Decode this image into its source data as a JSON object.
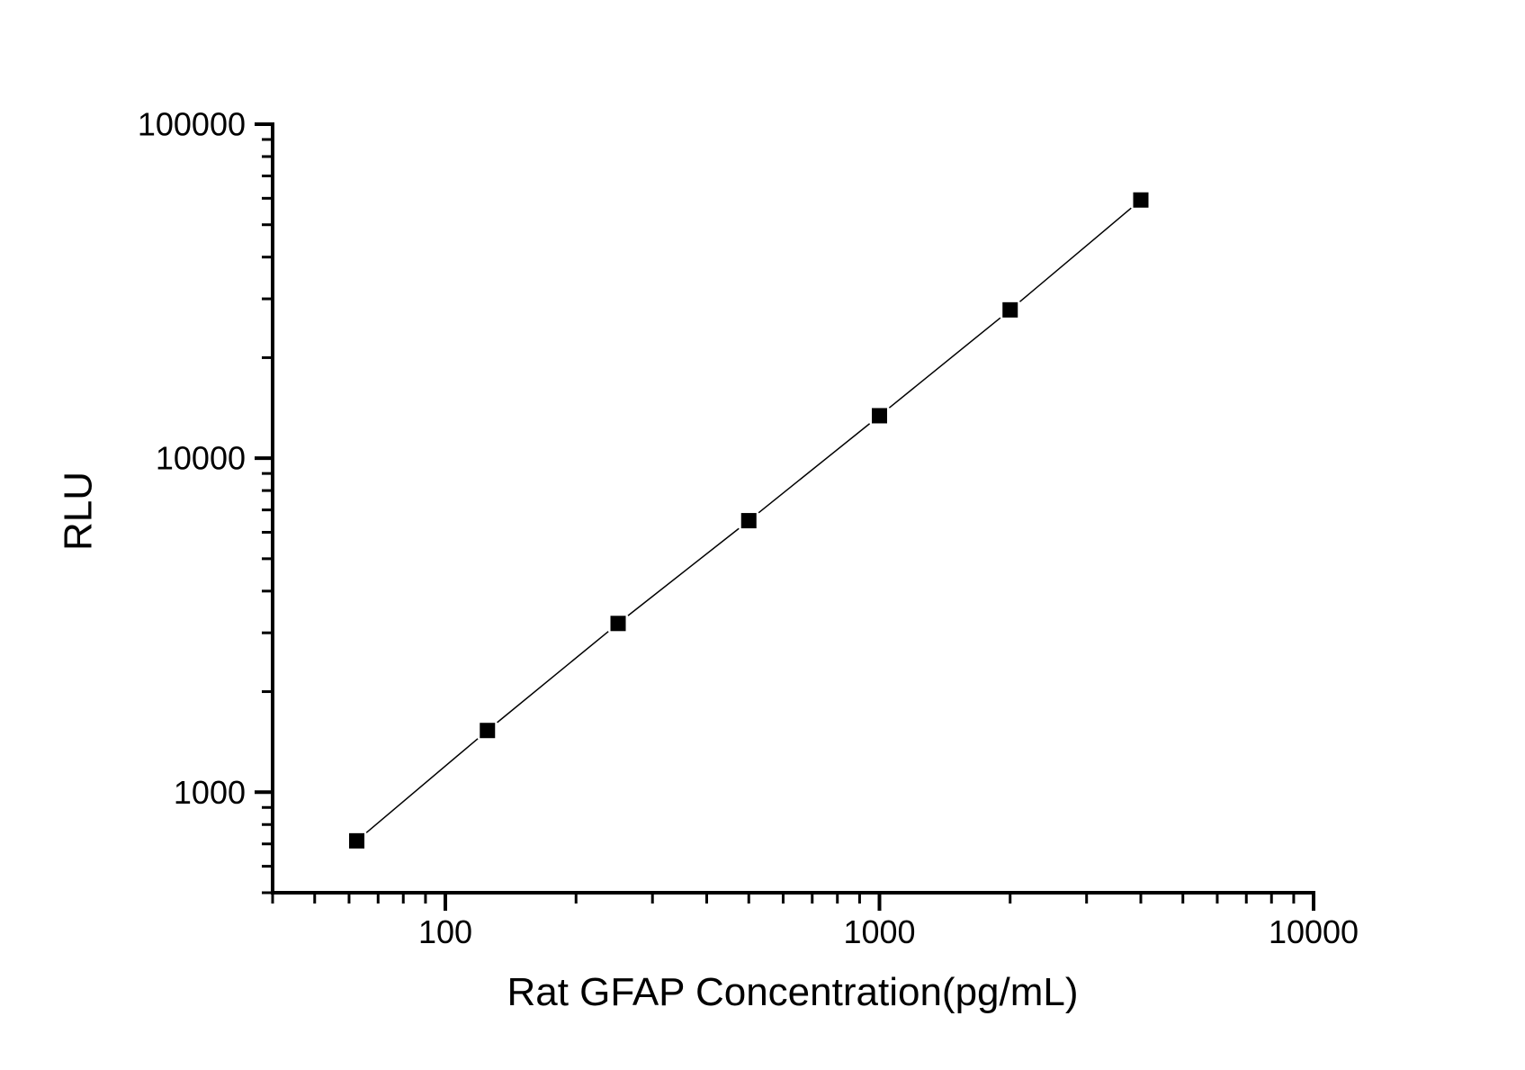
{
  "chart_data": {
    "type": "line",
    "title": "",
    "xlabel": "Rat GFAP Concentration(pg/mL)",
    "ylabel": "RLU",
    "xscale": "log",
    "yscale": "log",
    "xlim": [
      40,
      10000
    ],
    "ylim": [
      500,
      100000
    ],
    "x_major_ticks": [
      100,
      1000,
      10000
    ],
    "y_major_ticks": [
      1000,
      10000,
      100000
    ],
    "grid": false,
    "legend": "none",
    "axis_color": "#000000",
    "background_color": "#ffffff",
    "series": [
      {
        "marker": "filled-square",
        "marker_color": "#000000",
        "line_color": "#000000",
        "x": [
          62.5,
          125,
          250,
          500,
          1000,
          2000,
          4000
        ],
        "y": [
          715,
          1530,
          3200,
          6500,
          13400,
          27800,
          59300
        ]
      }
    ]
  }
}
